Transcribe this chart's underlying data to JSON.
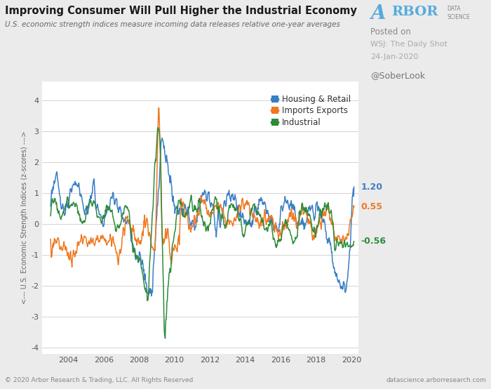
{
  "title": "Improving Consumer Will Pull Higher the Industrial Economy",
  "subtitle": "U.S. economic strength indices measure incoming data releases relative one-year averages",
  "ylabel_top": "--->",
  "ylabel_mid": "U.S. Economic Strength Indices (z-scores)",
  "ylabel_bot": "<---",
  "xlabel_ticks": [
    2004,
    2006,
    2008,
    2010,
    2012,
    2014,
    2016,
    2018,
    2020
  ],
  "ylim": [
    -4.2,
    4.6
  ],
  "yticks": [
    -4,
    -3,
    -2,
    -1,
    0,
    1,
    2,
    3,
    4
  ],
  "colors": {
    "housing": "#3A7EC6",
    "imports": "#F07820",
    "industrial": "#2E8B3A"
  },
  "end_labels": {
    "housing": "1.20",
    "imports": "0.55",
    "industrial": "-0.56"
  },
  "legend": [
    "Housing & Retail",
    "Imports Exports",
    "Industrial"
  ],
  "footer_left": "© 2020 Arbor Research & Trading, LLC. All Rights Reserved",
  "footer_right": "datascience.arborresearch.com",
  "posted_on": "Posted on",
  "source": "WSJ: The Daily Shot",
  "date": "24-Jan-2020",
  "handle": "@SoberLook",
  "bg_color": "#ebebeb",
  "plot_bg": "#ffffff",
  "grid_color": "#cccccc"
}
